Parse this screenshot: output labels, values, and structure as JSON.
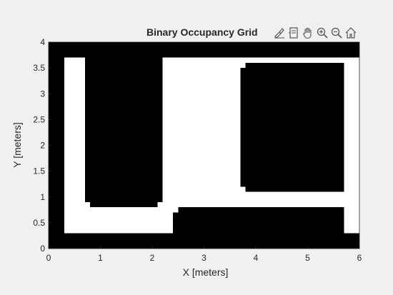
{
  "title": "Binary Occupancy Grid",
  "toolbar": {
    "icons": [
      "brush-icon",
      "datatip-icon",
      "pan-hand-icon",
      "zoom-in-icon",
      "zoom-out-icon",
      "home-icon"
    ]
  },
  "colors": {
    "figure_background": "#f0f0f0",
    "occupied": "#000000",
    "free": "#ffffff",
    "axis_text": "#262626"
  },
  "chart_data": {
    "type": "heatmap",
    "title": "Binary Occupancy Grid",
    "xlabel": "X [meters]",
    "ylabel": "Y [meters]",
    "xlim": [
      0,
      6
    ],
    "ylim": [
      0,
      4
    ],
    "xticks": [
      "0",
      "1",
      "2",
      "3",
      "4",
      "5",
      "6"
    ],
    "yticks": [
      "0",
      "0.5",
      "1",
      "1.5",
      "2",
      "2.5",
      "3",
      "3.5",
      "4"
    ],
    "grid": false,
    "legend": "none",
    "background_value": "occupied",
    "free_regions": [
      {
        "x": [
          0.3,
          2.4
        ],
        "y": [
          0.3,
          0.8
        ]
      },
      {
        "x": [
          0.3,
          0.7
        ],
        "y": [
          0.8,
          3.7
        ]
      },
      {
        "x": [
          0.7,
          0.8
        ],
        "y": [
          0.8,
          0.9
        ]
      },
      {
        "x": [
          2.1,
          2.2
        ],
        "y": [
          0.8,
          0.9
        ]
      },
      {
        "x": [
          2.2,
          3.7
        ],
        "y": [
          0.8,
          3.7
        ]
      },
      {
        "x": [
          2.4,
          2.5
        ],
        "y": [
          0.7,
          0.8
        ]
      },
      {
        "x": [
          3.7,
          5.7
        ],
        "y": [
          0.8,
          1.1
        ]
      },
      {
        "x": [
          3.7,
          3.8
        ],
        "y": [
          1.1,
          1.2
        ]
      },
      {
        "x": [
          3.7,
          5.7
        ],
        "y": [
          3.6,
          3.7
        ]
      },
      {
        "x": [
          3.7,
          3.8
        ],
        "y": [
          3.5,
          3.6
        ]
      },
      {
        "x": [
          5.7,
          6.0
        ],
        "y": [
          0.3,
          3.7
        ]
      }
    ]
  }
}
